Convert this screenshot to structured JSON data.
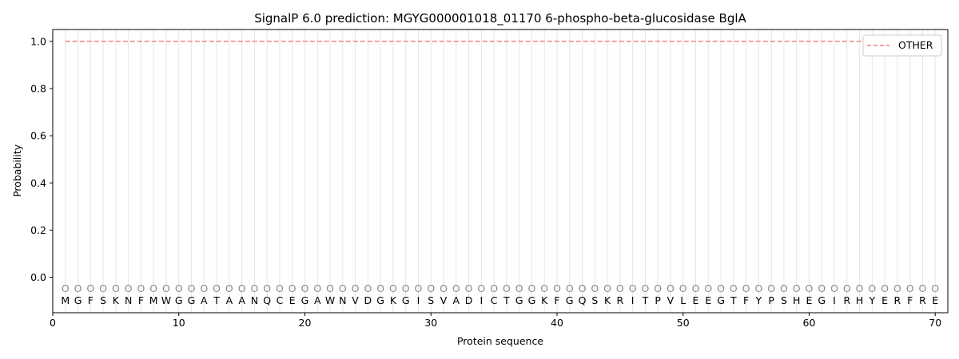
{
  "chart_data": {
    "type": "line",
    "title": "SignalP 6.0 prediction: MGYG000001018_01170 6-phospho-beta-glucosidase BglA",
    "xlabel": "Protein sequence",
    "ylabel": "Probability",
    "xlim": [
      0,
      71
    ],
    "ylim": [
      -0.15,
      1.05
    ],
    "xticks": [
      0,
      10,
      20,
      30,
      40,
      50,
      60,
      70
    ],
    "yticks": [
      0.0,
      0.2,
      0.4,
      0.6,
      0.8,
      1.0
    ],
    "ytick_labels": [
      "0.0",
      "0.2",
      "0.4",
      "0.6",
      "0.8",
      "1.0"
    ],
    "grid": "vertical lines at each residue",
    "legend": {
      "placement": "top-right",
      "entries": [
        {
          "name": "OTHER",
          "color": "#f08080",
          "style": "dashed"
        }
      ]
    },
    "series": [
      {
        "name": "OTHER",
        "x_start": 1,
        "x_end": 70,
        "y": 1.0,
        "color": "#f08080"
      }
    ],
    "residue_marker": "O",
    "residue_marker_y": -0.045,
    "residues": [
      "M",
      "G",
      "F",
      "S",
      "K",
      "N",
      "F",
      "M",
      "W",
      "G",
      "G",
      "A",
      "T",
      "A",
      "A",
      "N",
      "Q",
      "C",
      "E",
      "G",
      "A",
      "W",
      "N",
      "V",
      "D",
      "G",
      "K",
      "G",
      "I",
      "S",
      "V",
      "A",
      "D",
      "I",
      "C",
      "T",
      "G",
      "G",
      "K",
      "F",
      "G",
      "Q",
      "S",
      "K",
      "R",
      "I",
      "T",
      "P",
      "V",
      "L",
      "E",
      "E",
      "G",
      "T",
      "F",
      "Y",
      "P",
      "S",
      "H",
      "E",
      "G",
      "I",
      "R",
      "H",
      "Y",
      "E",
      "R",
      "F",
      "R",
      "E"
    ]
  }
}
